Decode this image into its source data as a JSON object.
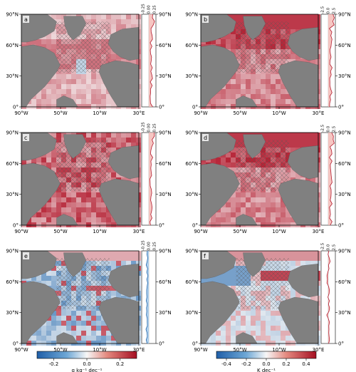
{
  "chart_data": {
    "type": "heatmap",
    "layout": "3 rows x 2 columns of map panels, each with a zonal-mean profile strip on its right",
    "colors": {
      "land": "#808080",
      "ocean_base": "#f7f7f7",
      "positive": "#b2182b",
      "negative": "#2166ac",
      "hatch": "#444444"
    },
    "panels": [
      {
        "label": "a",
        "x_ticks": [
          "90°W",
          "50°W",
          "10°W",
          "30°E"
        ],
        "y_ticks": [
          "0°",
          "30°N",
          "60°N",
          "90°N"
        ],
        "profile_ticks": [
          "-0.25",
          "0.00",
          "0.25"
        ],
        "field": "mild_positive",
        "colorbar": "salinity"
      },
      {
        "label": "b",
        "x_ticks": [
          "90°W",
          "50°W",
          "10°W",
          "30°E"
        ],
        "y_ticks": [
          "0°",
          "30°N",
          "60°N",
          "90°N"
        ],
        "profile_ticks": [
          "-2.5",
          "0.0",
          "2.5"
        ],
        "field": "strong_positive_arctic",
        "colorbar": "temperature"
      },
      {
        "label": "c",
        "x_ticks": [
          "90°W",
          "50°W",
          "10°W",
          "30°E"
        ],
        "y_ticks": [
          "0°",
          "30°N",
          "60°N",
          "90°N"
        ],
        "profile_ticks": [
          "-0.25",
          "0.00",
          "0.25"
        ],
        "field": "positive",
        "colorbar": "salinity"
      },
      {
        "label": "d",
        "x_ticks": [
          "90°W",
          "50°W",
          "10°W",
          "30°E"
        ],
        "y_ticks": [
          "0°",
          "30°N",
          "60°N",
          "90°N"
        ],
        "profile_ticks": [
          "-2.5",
          "0.0",
          "2.5"
        ],
        "field": "strong_positive_arctic",
        "colorbar": "temperature"
      },
      {
        "label": "e",
        "x_ticks": [
          "90°W",
          "50°W",
          "10°W",
          "30°E"
        ],
        "y_ticks": [
          "0°",
          "30°N",
          "60°N",
          "90°N"
        ],
        "profile_ticks": [
          "-0.25",
          "0.00",
          "0.25"
        ],
        "field": "negative",
        "colorbar": "salinity"
      },
      {
        "label": "f",
        "x_ticks": [
          "90°W",
          "50°W",
          "10°W",
          "30°E"
        ],
        "y_ticks": [
          "0°",
          "30°N",
          "60°N",
          "90°N"
        ],
        "profile_ticks": [
          "-2.5",
          "0.0",
          "2.5"
        ],
        "field": "mixed",
        "colorbar": "temperature"
      }
    ],
    "colorbars": [
      {
        "name": "salinity",
        "ticks": [
          "-0.2",
          "0.0",
          "0.2"
        ],
        "range": [
          -0.3,
          0.3
        ],
        "label": "g kg⁻¹ dec⁻¹"
      },
      {
        "name": "temperature",
        "ticks": [
          "-0.4",
          "-0.2",
          "0.0",
          "0.2",
          "0.4"
        ],
        "range": [
          -0.5,
          0.5
        ],
        "label": "K dec⁻¹"
      }
    ]
  }
}
